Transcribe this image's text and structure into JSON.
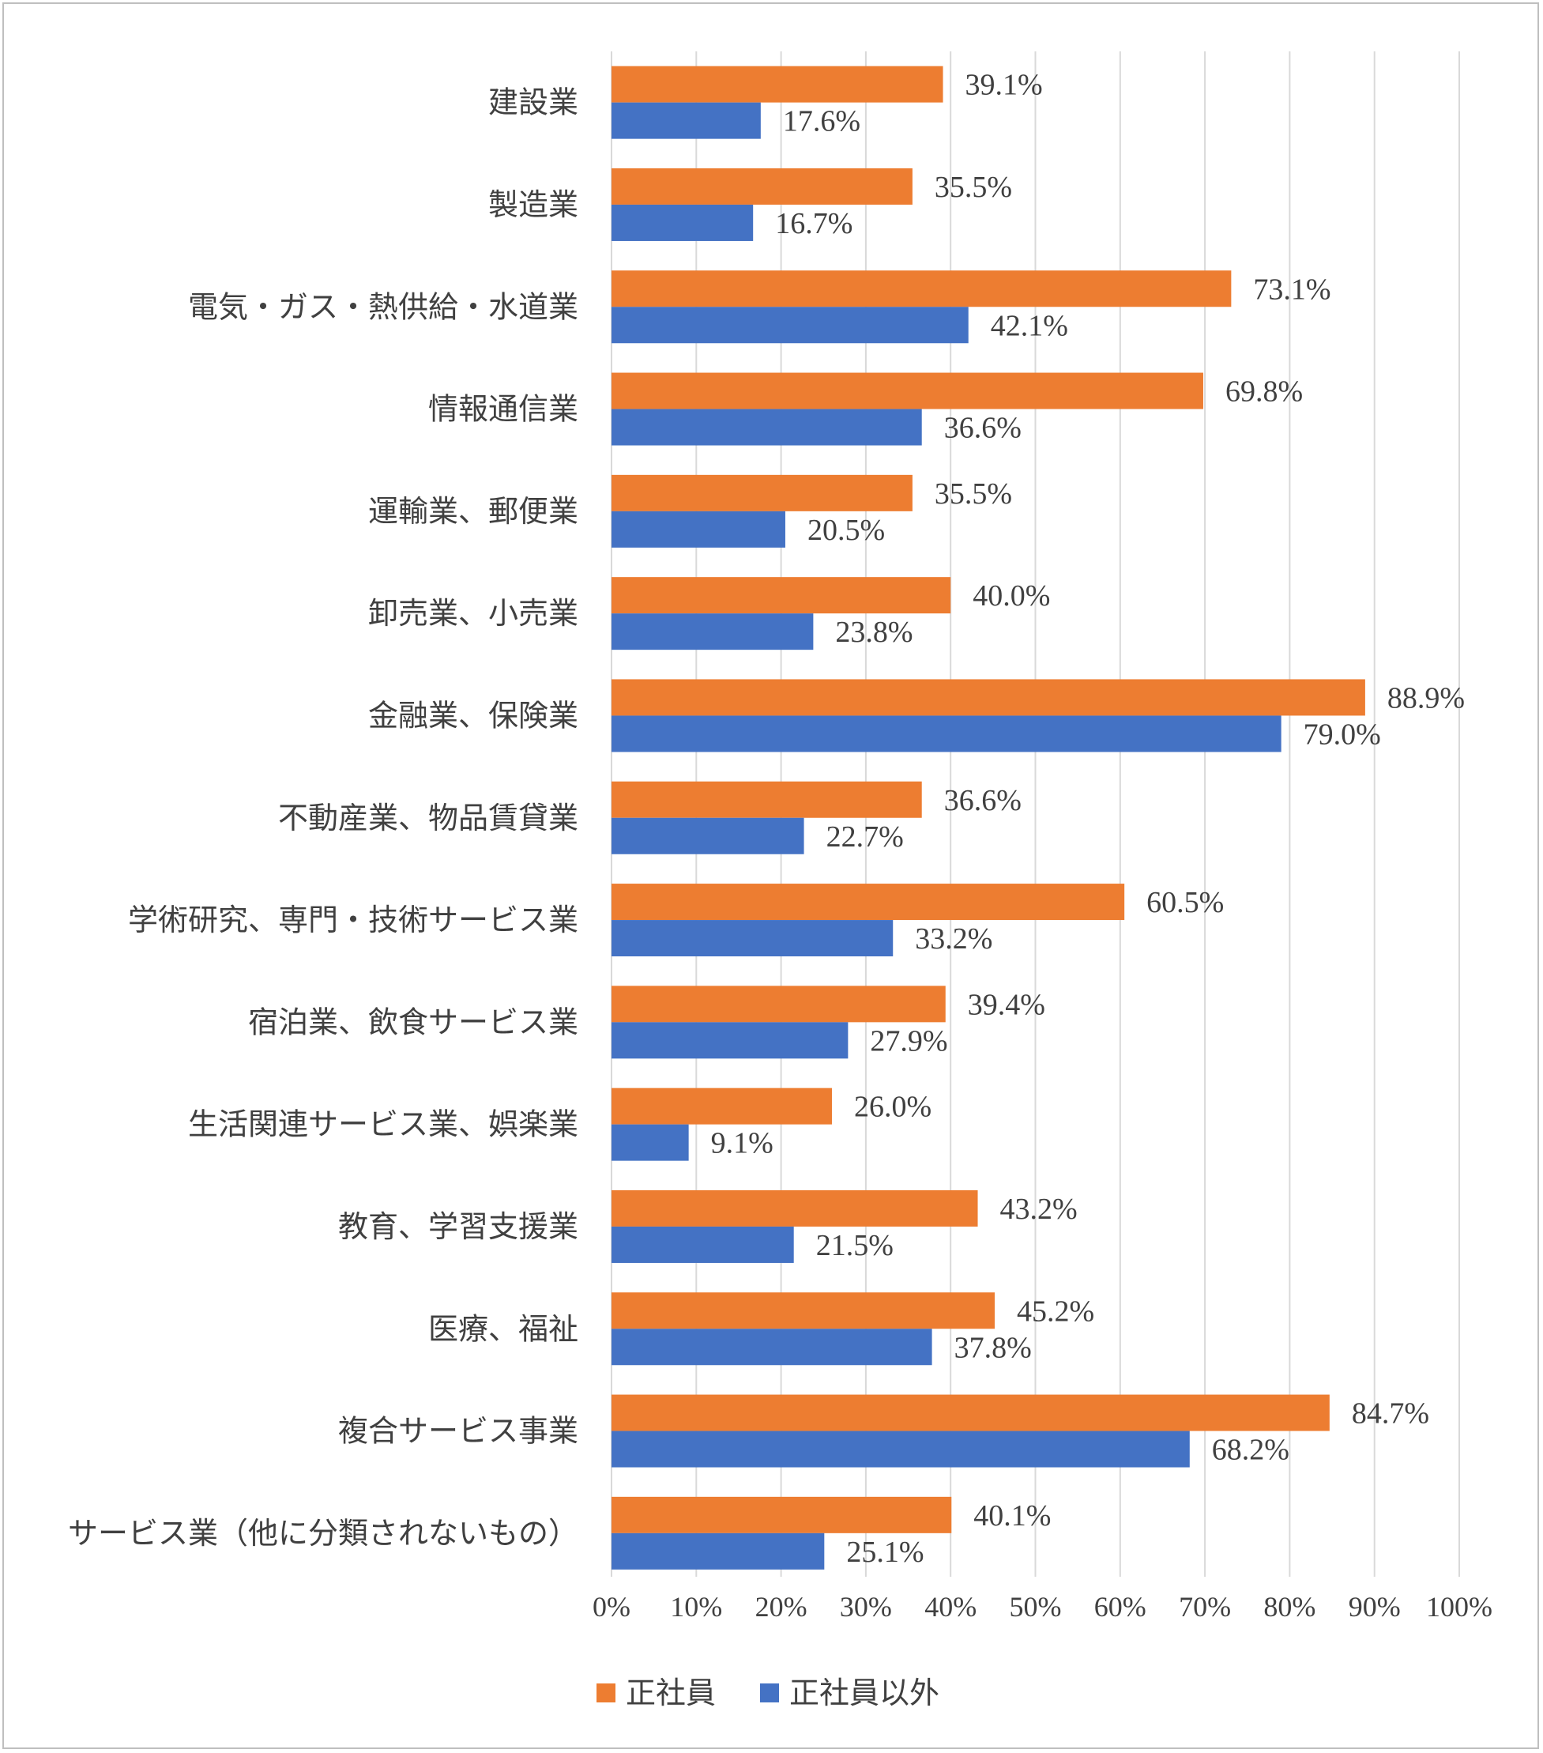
{
  "chart_data": {
    "type": "bar",
    "orientation": "horizontal",
    "title": "",
    "xlabel": "",
    "ylabel": "",
    "xlim": [
      0,
      100
    ],
    "x_ticks": [
      "0%",
      "10%",
      "20%",
      "30%",
      "40%",
      "50%",
      "60%",
      "70%",
      "80%",
      "90%",
      "100%"
    ],
    "grid": true,
    "legend_position": "bottom",
    "categories": [
      "建設業",
      "製造業",
      "電気・ガス・熱供給・水道業",
      "情報通信業",
      "運輸業、郵便業",
      "卸売業、小売業",
      "金融業、保険業",
      "不動産業、物品賃貸業",
      "学術研究、専門・技術サービス業",
      "宿泊業、飲食サービス業",
      "生活関連サービス業、娯楽業",
      "教育、学習支援業",
      "医療、福祉",
      "複合サービス事業",
      "サービス業（他に分類されないもの）"
    ],
    "series": [
      {
        "name": "正社員",
        "color": "#ed7d31",
        "values": [
          39.1,
          35.5,
          73.1,
          69.8,
          35.5,
          40.0,
          88.9,
          36.6,
          60.5,
          39.4,
          26.0,
          43.2,
          45.2,
          84.7,
          40.1
        ],
        "labels": [
          "39.1%",
          "35.5%",
          "73.1%",
          "69.8%",
          "35.5%",
          "40.0%",
          "88.9%",
          "36.6%",
          "60.5%",
          "39.4%",
          "26.0%",
          "43.2%",
          "45.2%",
          "84.7%",
          "40.1%"
        ]
      },
      {
        "name": "正社員以外",
        "color": "#4472c4",
        "values": [
          17.6,
          16.7,
          42.1,
          36.6,
          20.5,
          23.8,
          79.0,
          22.7,
          33.2,
          27.9,
          9.1,
          21.5,
          37.8,
          68.2,
          25.1
        ],
        "labels": [
          "17.6%",
          "16.7%",
          "42.1%",
          "36.6%",
          "20.5%",
          "23.8%",
          "79.0%",
          "22.7%",
          "33.2%",
          "27.9%",
          "9.1%",
          "21.5%",
          "37.8%",
          "68.2%",
          "25.1%"
        ]
      }
    ]
  }
}
